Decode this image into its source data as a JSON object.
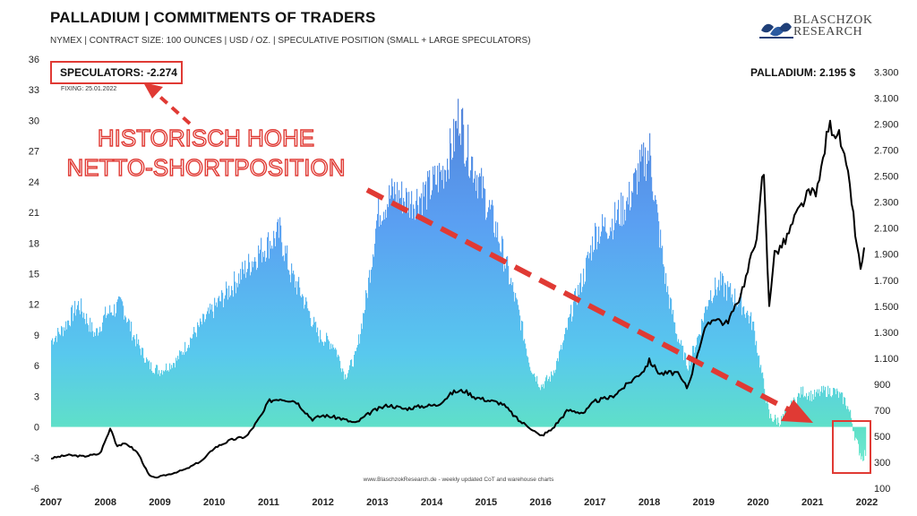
{
  "header": {
    "title": "PALLADIUM | COMMITMENTS OF TRADERS",
    "subtitle": "NYMEX | CONTRACT SIZE: 100 OUNCES | USD / OZ. | SPECULATIVE POSITION (SMALL + LARGE SPECULATORS)",
    "logo_line1": "BLASCHZOK",
    "logo_line2": "RESEARCH"
  },
  "labels": {
    "speculators": "SPECULATORS: -2.274",
    "fixing": "FIXING: 25.01.2022",
    "price": "PALLADIUM: 2.195 $",
    "annotation_line1": "HISTORISCH HOHE",
    "annotation_line2": "NETTO-SHORTPOSITION",
    "watermark": "www.BlaschzokResearch.de  -  weekly updated CoT and warehouse charts"
  },
  "colors": {
    "accent_red": "#e03a34",
    "bar_top": "#4f8fe8",
    "bar_bottom": "#5fe0c8",
    "price_line": "#000000"
  },
  "chart_data": {
    "type": "area",
    "x_ticks": [
      "2007",
      "2008",
      "2009",
      "2010",
      "2011",
      "2012",
      "2013",
      "2014",
      "2015",
      "2016",
      "2017",
      "2018",
      "2019",
      "2020",
      "2021",
      "2022"
    ],
    "ylim_left": [
      -6,
      36
    ],
    "yticks_left": [
      "36",
      "33",
      "30",
      "27",
      "24",
      "21",
      "18",
      "15",
      "12",
      "9",
      "6",
      "3",
      "0",
      "-3",
      "-6"
    ],
    "ylim_right": [
      100,
      3400
    ],
    "yticks_right": [
      "3.300",
      "3.100",
      "2.900",
      "2.700",
      "2.500",
      "2.300",
      "2.100",
      "1.900",
      "1.700",
      "1.500",
      "1.300",
      "1.100",
      "900",
      "700",
      "500",
      "300",
      "100"
    ],
    "series": [
      {
        "name": "SPECULATORS",
        "axis": "left",
        "points": [
          [
            2007.0,
            8.5
          ],
          [
            2007.2,
            9.5
          ],
          [
            2007.5,
            12
          ],
          [
            2007.8,
            9
          ],
          [
            2008.0,
            11
          ],
          [
            2008.3,
            12
          ],
          [
            2008.5,
            9
          ],
          [
            2008.8,
            6
          ],
          [
            2009.0,
            5.5
          ],
          [
            2009.3,
            6.5
          ],
          [
            2009.6,
            9
          ],
          [
            2009.9,
            11
          ],
          [
            2010.2,
            13
          ],
          [
            2010.5,
            15
          ],
          [
            2010.8,
            17
          ],
          [
            2011.0,
            18
          ],
          [
            2011.2,
            19
          ],
          [
            2011.4,
            15
          ],
          [
            2011.6,
            13
          ],
          [
            2011.9,
            9
          ],
          [
            2012.2,
            8
          ],
          [
            2012.4,
            5
          ],
          [
            2012.6,
            7
          ],
          [
            2012.8,
            13
          ],
          [
            2013.0,
            21
          ],
          [
            2013.3,
            23
          ],
          [
            2013.6,
            22
          ],
          [
            2013.9,
            23
          ],
          [
            2014.2,
            25
          ],
          [
            2014.4,
            28
          ],
          [
            2014.5,
            31
          ],
          [
            2014.6,
            28
          ],
          [
            2014.8,
            25
          ],
          [
            2015.0,
            22
          ],
          [
            2015.2,
            19
          ],
          [
            2015.4,
            15
          ],
          [
            2015.6,
            11
          ],
          [
            2015.8,
            6
          ],
          [
            2016.0,
            4
          ],
          [
            2016.2,
            5
          ],
          [
            2016.4,
            8
          ],
          [
            2016.6,
            12
          ],
          [
            2016.8,
            15
          ],
          [
            2017.0,
            19
          ],
          [
            2017.3,
            20
          ],
          [
            2017.6,
            22
          ],
          [
            2017.8,
            25
          ],
          [
            2018.0,
            27
          ],
          [
            2018.1,
            22
          ],
          [
            2018.3,
            14
          ],
          [
            2018.5,
            9
          ],
          [
            2018.7,
            6
          ],
          [
            2018.9,
            9
          ],
          [
            2019.1,
            13
          ],
          [
            2019.3,
            14
          ],
          [
            2019.5,
            13
          ],
          [
            2019.7,
            12
          ],
          [
            2019.9,
            10
          ],
          [
            2020.1,
            4
          ],
          [
            2020.2,
            1
          ],
          [
            2020.4,
            0.5
          ],
          [
            2020.6,
            2
          ],
          [
            2020.8,
            3.5
          ],
          [
            2021.0,
            3
          ],
          [
            2021.2,
            3.5
          ],
          [
            2021.4,
            3.5
          ],
          [
            2021.6,
            2.5
          ],
          [
            2021.7,
            1
          ],
          [
            2021.8,
            -1.5
          ],
          [
            2021.9,
            -3
          ],
          [
            2022.0,
            -2.3
          ]
        ]
      },
      {
        "name": "PALLADIUM",
        "axis": "right",
        "points": [
          [
            2007.0,
            330
          ],
          [
            2007.3,
            355
          ],
          [
            2007.6,
            345
          ],
          [
            2007.9,
            365
          ],
          [
            2008.1,
            570
          ],
          [
            2008.2,
            430
          ],
          [
            2008.4,
            440
          ],
          [
            2008.6,
            370
          ],
          [
            2008.8,
            200
          ],
          [
            2008.9,
            180
          ],
          [
            2009.2,
            210
          ],
          [
            2009.5,
            250
          ],
          [
            2009.8,
            320
          ],
          [
            2010.0,
            410
          ],
          [
            2010.3,
            470
          ],
          [
            2010.6,
            500
          ],
          [
            2010.9,
            680
          ],
          [
            2011.0,
            770
          ],
          [
            2011.2,
            790
          ],
          [
            2011.5,
            770
          ],
          [
            2011.8,
            630
          ],
          [
            2012.0,
            660
          ],
          [
            2012.3,
            640
          ],
          [
            2012.6,
            600
          ],
          [
            2012.9,
            690
          ],
          [
            2013.2,
            740
          ],
          [
            2013.5,
            710
          ],
          [
            2013.8,
            730
          ],
          [
            2014.1,
            740
          ],
          [
            2014.4,
            840
          ],
          [
            2014.6,
            850
          ],
          [
            2014.8,
            800
          ],
          [
            2015.0,
            780
          ],
          [
            2015.3,
            750
          ],
          [
            2015.6,
            620
          ],
          [
            2015.8,
            570
          ],
          [
            2016.0,
            500
          ],
          [
            2016.2,
            550
          ],
          [
            2016.5,
            700
          ],
          [
            2016.8,
            680
          ],
          [
            2017.0,
            770
          ],
          [
            2017.3,
            800
          ],
          [
            2017.6,
            900
          ],
          [
            2017.9,
            1010
          ],
          [
            2018.0,
            1080
          ],
          [
            2018.2,
            980
          ],
          [
            2018.5,
            990
          ],
          [
            2018.7,
            870
          ],
          [
            2018.9,
            1160
          ],
          [
            2019.0,
            1300
          ],
          [
            2019.2,
            1420
          ],
          [
            2019.4,
            1360
          ],
          [
            2019.6,
            1500
          ],
          [
            2019.8,
            1750
          ],
          [
            2020.0,
            2100
          ],
          [
            2020.1,
            2600
          ],
          [
            2020.2,
            1500
          ],
          [
            2020.3,
            1900
          ],
          [
            2020.5,
            2000
          ],
          [
            2020.7,
            2200
          ],
          [
            2020.9,
            2350
          ],
          [
            2021.1,
            2400
          ],
          [
            2021.3,
            2900
          ],
          [
            2021.5,
            2800
          ],
          [
            2021.6,
            2600
          ],
          [
            2021.7,
            2400
          ],
          [
            2021.8,
            2000
          ],
          [
            2021.9,
            1750
          ],
          [
            2022.0,
            2195
          ]
        ]
      }
    ]
  }
}
